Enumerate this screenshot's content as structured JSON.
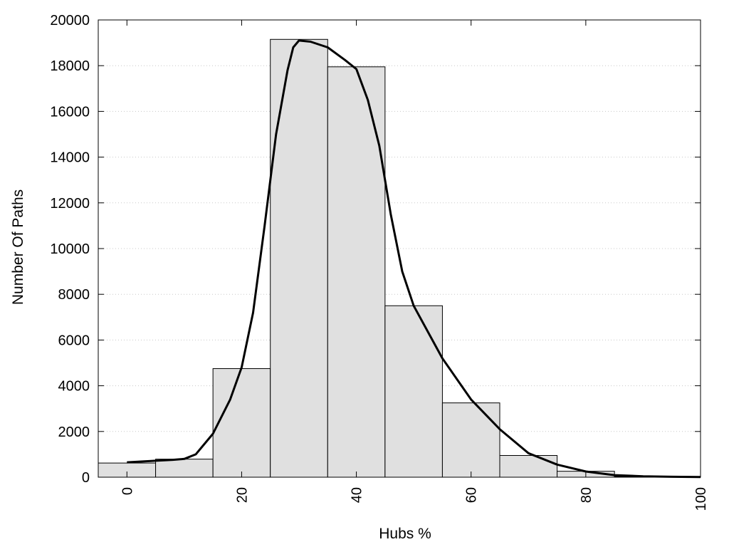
{
  "chart_data": {
    "type": "bar",
    "title": "",
    "xlabel": "Hubs %",
    "ylabel": "Number Of Paths",
    "xlim": [
      -5,
      100
    ],
    "ylim": [
      0,
      20000
    ],
    "x_ticks": [
      0,
      20,
      40,
      60,
      80,
      100
    ],
    "y_ticks": [
      0,
      2000,
      4000,
      6000,
      8000,
      10000,
      12000,
      14000,
      16000,
      18000,
      20000
    ],
    "x_tick_labels": [
      "0",
      "20",
      "40",
      "60",
      "80",
      "100"
    ],
    "y_tick_labels": [
      "0",
      "2000",
      "4000",
      "6000",
      "8000",
      "10000",
      "12000",
      "14000",
      "16000",
      "18000",
      "20000"
    ],
    "grid": "horizontal dotted",
    "bin_width": 10,
    "bins": [
      {
        "center": 0,
        "value": 620
      },
      {
        "center": 10,
        "value": 790
      },
      {
        "center": 20,
        "value": 4750
      },
      {
        "center": 30,
        "value": 19150
      },
      {
        "center": 40,
        "value": 17950
      },
      {
        "center": 50,
        "value": 7500
      },
      {
        "center": 60,
        "value": 3250
      },
      {
        "center": 70,
        "value": 950
      },
      {
        "center": 80,
        "value": 260
      },
      {
        "center": 90,
        "value": 30
      },
      {
        "center": 100,
        "value": 10
      }
    ],
    "curve": {
      "x": [
        0,
        5,
        8,
        10,
        12,
        15,
        18,
        20,
        22,
        24,
        26,
        28,
        29,
        30,
        32,
        35,
        38,
        40,
        42,
        44,
        46,
        48,
        50,
        55,
        60,
        65,
        70,
        75,
        80,
        85,
        90,
        95,
        100
      ],
      "y": [
        650,
        720,
        760,
        800,
        1000,
        1900,
        3400,
        4800,
        7200,
        11000,
        15000,
        17800,
        18800,
        19100,
        19050,
        18800,
        18250,
        17850,
        16500,
        14500,
        11500,
        9000,
        7500,
        5200,
        3400,
        2100,
        1050,
        550,
        250,
        90,
        40,
        20,
        10
      ]
    }
  }
}
